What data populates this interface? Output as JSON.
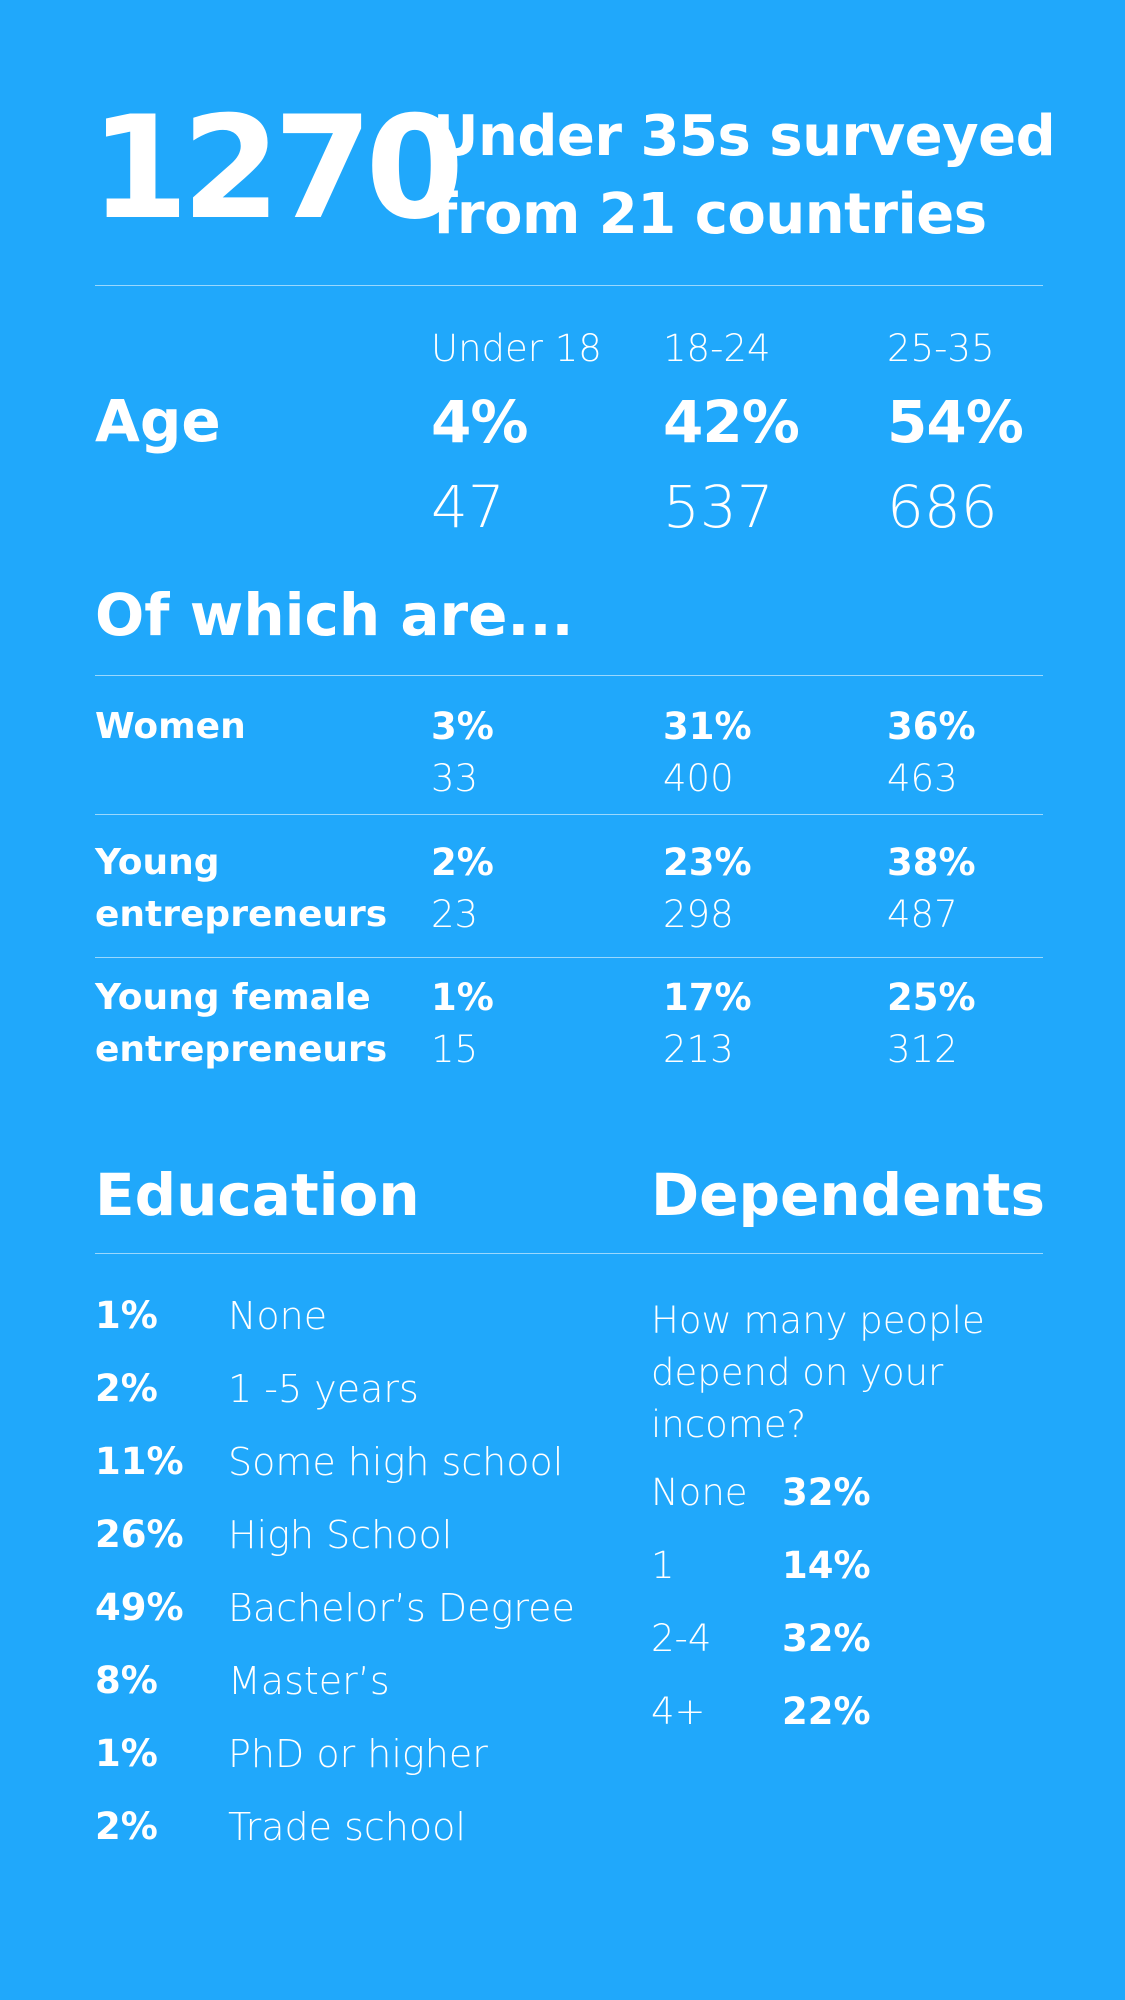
{
  "header": {
    "count": "1270",
    "line1": "Under 35s surveyed",
    "line2": "from 21 countries"
  },
  "age": {
    "label": "Age",
    "columns": [
      {
        "range": "Under 18",
        "pct": "4%",
        "count": "47"
      },
      {
        "range": "18-24",
        "pct": "42%",
        "count": "537"
      },
      {
        "range": "25-35",
        "pct": "54%",
        "count": "686"
      }
    ]
  },
  "of_which": {
    "title": "Of which are...",
    "rows": [
      {
        "label_line1": "Women",
        "label_line2": "",
        "values": [
          {
            "pct": "3%",
            "count": "33"
          },
          {
            "pct": "31%",
            "count": "400"
          },
          {
            "pct": "36%",
            "count": "463"
          }
        ]
      },
      {
        "label_line1": "Young",
        "label_line2": "entrepreneurs",
        "values": [
          {
            "pct": "2%",
            "count": "23"
          },
          {
            "pct": "23%",
            "count": "298"
          },
          {
            "pct": "38%",
            "count": "487"
          }
        ]
      },
      {
        "label_line1": "Young female",
        "label_line2": "entrepreneurs",
        "values": [
          {
            "pct": "1%",
            "count": "15"
          },
          {
            "pct": "17%",
            "count": "213"
          },
          {
            "pct": "25%",
            "count": "312"
          }
        ]
      }
    ]
  },
  "education": {
    "title": "Education",
    "items": [
      {
        "pct": "1%",
        "label": "None"
      },
      {
        "pct": "2%",
        "label": "1 -5 years"
      },
      {
        "pct": "11%",
        "label": "Some high school"
      },
      {
        "pct": "26%",
        "label": "High School"
      },
      {
        "pct": "49%",
        "label": "Bachelor’s Degree"
      },
      {
        "pct": "8%",
        "label": "Master’s"
      },
      {
        "pct": "1%",
        "label": "PhD or higher"
      },
      {
        "pct": "2%",
        "label": "Trade school"
      }
    ]
  },
  "dependents": {
    "title": "Dependents",
    "question_line1": "How many people",
    "question_line2": "depend on your",
    "question_line3": "income?",
    "items": [
      {
        "label": "None",
        "pct": "32%"
      },
      {
        "label": "1",
        "pct": "14%"
      },
      {
        "label": "2-4",
        "pct": "32%"
      },
      {
        "label": "4+",
        "pct": "22%"
      }
    ]
  },
  "colors": {
    "background": "#20a8fb",
    "text": "#ffffff"
  }
}
